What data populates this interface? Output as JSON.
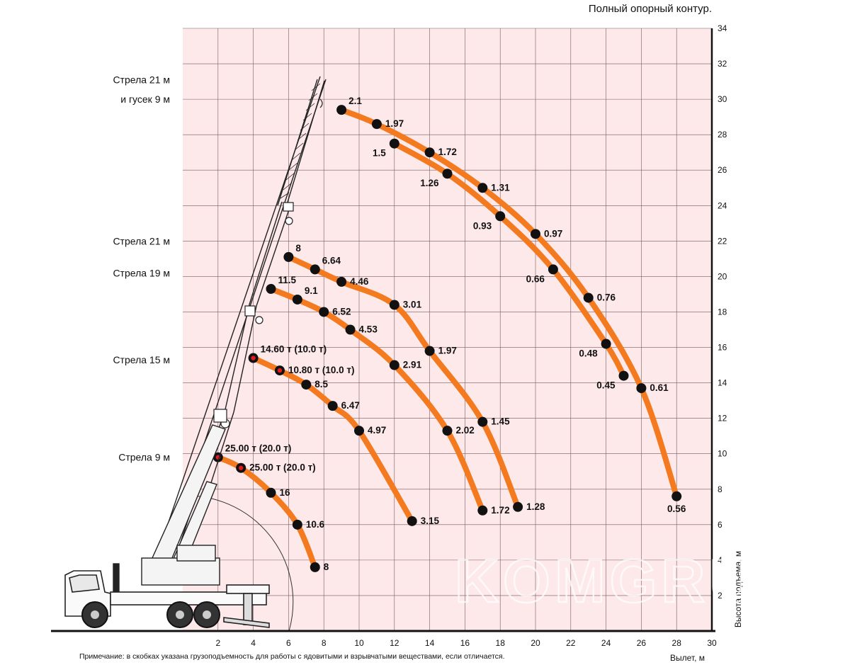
{
  "chart_data": {
    "type": "line",
    "title": "Полный опорный контур.",
    "xlabel": "Вылет, м",
    "ylabel": "Высота подъема, м",
    "xlim": [
      0,
      30
    ],
    "ylim": [
      0,
      34
    ],
    "x_ticks": [
      "2",
      "4",
      "6",
      "8",
      "10",
      "12",
      "14",
      "16",
      "18",
      "20",
      "22",
      "24",
      "26",
      "28",
      "30"
    ],
    "y_ticks": [
      "2",
      "4",
      "6",
      "8",
      "10",
      "12",
      "14",
      "16",
      "18",
      "20",
      "22",
      "24",
      "26",
      "28",
      "30",
      "32",
      "34"
    ],
    "grid": true,
    "background_color": "#fde8ea",
    "grid_color": "#7a5a5e",
    "curve_color": "#f47a20",
    "point_color": "#111111",
    "highlight_point_color": "#e21b23",
    "boom_labels": [
      {
        "text": "Стрела 21 м",
        "y": 31.1
      },
      {
        "text": "и гусек 9 м",
        "y": 30.0
      },
      {
        "text": "Стрела 21 м",
        "y": 22.0
      },
      {
        "text": "Стрела 19 м",
        "y": 20.2
      },
      {
        "text": "Стрела 15 м",
        "y": 15.3
      },
      {
        "text": "Стрела 9 м",
        "y": 9.8
      }
    ],
    "series": [
      {
        "name": "Стрела 9 м",
        "points": [
          {
            "x": 2.0,
            "y": 9.8,
            "label": "25.00 т (20.0 т)",
            "highlight": true,
            "label_pos": "above"
          },
          {
            "x": 3.3,
            "y": 9.2,
            "label": "25.00 т (20.0 т)",
            "highlight": true,
            "label_pos": "right"
          },
          {
            "x": 5.0,
            "y": 7.8,
            "label": "16",
            "highlight": false,
            "label_pos": "right"
          },
          {
            "x": 6.5,
            "y": 6.0,
            "label": "10.6",
            "highlight": false,
            "label_pos": "right"
          },
          {
            "x": 7.5,
            "y": 3.6,
            "label": "8",
            "highlight": false,
            "label_pos": "right"
          }
        ]
      },
      {
        "name": "Стрела 15 м",
        "points": [
          {
            "x": 4.0,
            "y": 15.4,
            "label": "14.60 т (10.0 т)",
            "highlight": true,
            "label_pos": "above"
          },
          {
            "x": 5.5,
            "y": 14.7,
            "label": "10.80 т (10.0 т)",
            "highlight": true,
            "label_pos": "right"
          },
          {
            "x": 7.0,
            "y": 13.9,
            "label": "8.5",
            "highlight": false,
            "label_pos": "right"
          },
          {
            "x": 8.5,
            "y": 12.7,
            "label": "6.47",
            "highlight": false,
            "label_pos": "right"
          },
          {
            "x": 10.0,
            "y": 11.3,
            "label": "4.97",
            "highlight": false,
            "label_pos": "right"
          },
          {
            "x": 13.0,
            "y": 6.2,
            "label": "3.15",
            "highlight": false,
            "label_pos": "right"
          }
        ]
      },
      {
        "name": "Стрела 19 м",
        "points": [
          {
            "x": 5.0,
            "y": 19.3,
            "label": "11.5",
            "highlight": false,
            "label_pos": "above"
          },
          {
            "x": 6.5,
            "y": 18.7,
            "label": "9.1",
            "highlight": false,
            "label_pos": "above"
          },
          {
            "x": 8.0,
            "y": 18.0,
            "label": "6.52",
            "highlight": false,
            "label_pos": "right"
          },
          {
            "x": 9.5,
            "y": 17.0,
            "label": "4.53",
            "highlight": false,
            "label_pos": "right"
          },
          {
            "x": 12.0,
            "y": 15.0,
            "label": "2.91",
            "highlight": false,
            "label_pos": "right"
          },
          {
            "x": 15.0,
            "y": 11.3,
            "label": "2.02",
            "highlight": false,
            "label_pos": "right"
          },
          {
            "x": 17.0,
            "y": 6.8,
            "label": "1.72",
            "highlight": false,
            "label_pos": "right"
          }
        ]
      },
      {
        "name": "Стрела 21 м",
        "points": [
          {
            "x": 6.0,
            "y": 21.1,
            "label": "8",
            "highlight": false,
            "label_pos": "above"
          },
          {
            "x": 7.5,
            "y": 20.4,
            "label": "6.64",
            "highlight": false,
            "label_pos": "above"
          },
          {
            "x": 9.0,
            "y": 19.7,
            "label": "4.46",
            "highlight": false,
            "label_pos": "right"
          },
          {
            "x": 12.0,
            "y": 18.4,
            "label": "3.01",
            "highlight": false,
            "label_pos": "right"
          },
          {
            "x": 14.0,
            "y": 15.8,
            "label": "1.97",
            "highlight": false,
            "label_pos": "right"
          },
          {
            "x": 17.0,
            "y": 11.8,
            "label": "1.45",
            "highlight": false,
            "label_pos": "right"
          },
          {
            "x": 19.0,
            "y": 7.0,
            "label": "1.28",
            "highlight": false,
            "label_pos": "right"
          }
        ]
      },
      {
        "name": "Стрела 21 м и гусек 9 м (внешняя)",
        "points": [
          {
            "x": 9.0,
            "y": 29.4,
            "label": "2.1",
            "highlight": false,
            "label_pos": "above"
          },
          {
            "x": 11.0,
            "y": 28.6,
            "label": "1.97",
            "highlight": false,
            "label_pos": "right"
          },
          {
            "x": 14.0,
            "y": 27.0,
            "label": "1.72",
            "highlight": false,
            "label_pos": "right"
          },
          {
            "x": 17.0,
            "y": 25.0,
            "label": "1.31",
            "highlight": false,
            "label_pos": "right"
          },
          {
            "x": 20.0,
            "y": 22.4,
            "label": "0.97",
            "highlight": false,
            "label_pos": "right"
          },
          {
            "x": 23.0,
            "y": 18.8,
            "label": "0.76",
            "highlight": false,
            "label_pos": "right"
          },
          {
            "x": 26.0,
            "y": 13.7,
            "label": "0.61",
            "highlight": false,
            "label_pos": "right"
          },
          {
            "x": 28.0,
            "y": 7.6,
            "label": "0.56",
            "highlight": false,
            "label_pos": "below"
          }
        ]
      },
      {
        "name": "Стрела 21 м и гусек 9 м (внутренняя)",
        "points": [
          {
            "x": 12.0,
            "y": 27.5,
            "label": "1.5",
            "highlight": false,
            "label_pos": "left"
          },
          {
            "x": 15.0,
            "y": 25.8,
            "label": "1.26",
            "highlight": false,
            "label_pos": "left"
          },
          {
            "x": 18.0,
            "y": 23.4,
            "label": "0.93",
            "highlight": false,
            "label_pos": "left"
          },
          {
            "x": 21.0,
            "y": 20.4,
            "label": "0.66",
            "highlight": false,
            "label_pos": "left"
          },
          {
            "x": 24.0,
            "y": 16.2,
            "label": "0.48",
            "highlight": false,
            "label_pos": "left"
          },
          {
            "x": 25.0,
            "y": 14.4,
            "label": "0.45",
            "highlight": false,
            "label_pos": "left"
          }
        ]
      }
    ],
    "note": "Примечание: в скобках указана грузоподъемность для работы с ядовитыми и взрывчатыми веществами, если отличается.",
    "watermark": "KOMGRUZ"
  }
}
